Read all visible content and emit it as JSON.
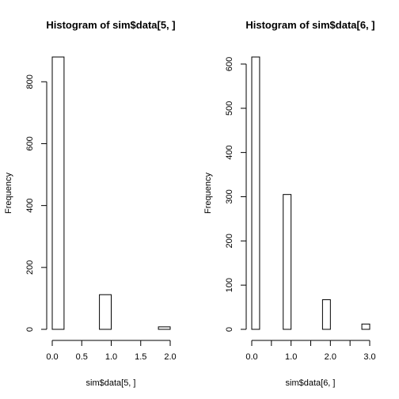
{
  "chart_data": [
    {
      "type": "bar",
      "title": "Histogram of sim$data[5, ]",
      "xlabel": "sim$data[5, ]",
      "ylabel": "Frequency",
      "bins": [
        {
          "from": 0.0,
          "to": 0.2,
          "count": 880
        },
        {
          "from": 0.2,
          "to": 0.4,
          "count": 0
        },
        {
          "from": 0.4,
          "to": 0.6,
          "count": 0
        },
        {
          "from": 0.6,
          "to": 0.8,
          "count": 0
        },
        {
          "from": 0.8,
          "to": 1.0,
          "count": 112
        },
        {
          "from": 1.0,
          "to": 1.2,
          "count": 0
        },
        {
          "from": 1.2,
          "to": 1.4,
          "count": 0
        },
        {
          "from": 1.4,
          "to": 1.6,
          "count": 0
        },
        {
          "from": 1.6,
          "to": 1.8,
          "count": 0
        },
        {
          "from": 1.8,
          "to": 2.0,
          "count": 8
        }
      ],
      "xlim": [
        0,
        2.0
      ],
      "ylim": [
        0,
        880
      ],
      "xticks": [
        0.0,
        0.5,
        1.0,
        1.5,
        2.0
      ],
      "xtick_labels": [
        "0.0",
        "0.5",
        "1.0",
        "1.5",
        "2.0"
      ],
      "yticks": [
        0,
        200,
        400,
        600,
        800
      ],
      "ytick_labels": [
        "0",
        "200",
        "400",
        "600",
        "800"
      ],
      "grid": false
    },
    {
      "type": "bar",
      "title": "Histogram of sim$data[6, ]",
      "xlabel": "sim$data[6, ]",
      "ylabel": "Frequency",
      "bins": [
        {
          "from": 0.0,
          "to": 0.2,
          "count": 616
        },
        {
          "from": 0.2,
          "to": 0.4,
          "count": 0
        },
        {
          "from": 0.4,
          "to": 0.6,
          "count": 0
        },
        {
          "from": 0.6,
          "to": 0.8,
          "count": 0
        },
        {
          "from": 0.8,
          "to": 1.0,
          "count": 305
        },
        {
          "from": 1.0,
          "to": 1.2,
          "count": 0
        },
        {
          "from": 1.2,
          "to": 1.4,
          "count": 0
        },
        {
          "from": 1.4,
          "to": 1.6,
          "count": 0
        },
        {
          "from": 1.6,
          "to": 1.8,
          "count": 0
        },
        {
          "from": 1.8,
          "to": 2.0,
          "count": 67
        },
        {
          "from": 2.0,
          "to": 2.2,
          "count": 0
        },
        {
          "from": 2.2,
          "to": 2.4,
          "count": 0
        },
        {
          "from": 2.4,
          "to": 2.6,
          "count": 0
        },
        {
          "from": 2.6,
          "to": 2.8,
          "count": 0
        },
        {
          "from": 2.8,
          "to": 3.0,
          "count": 12
        }
      ],
      "xlim": [
        0,
        3.0
      ],
      "ylim": [
        0,
        616
      ],
      "xticks": [
        0.0,
        0.5,
        1.0,
        1.5,
        2.0,
        2.5,
        3.0
      ],
      "xtick_labels": [
        "0.0",
        "",
        "1.0",
        "",
        "2.0",
        "",
        "3.0"
      ],
      "yticks": [
        0,
        100,
        200,
        300,
        400,
        500,
        600
      ],
      "ytick_labels": [
        "0",
        "100",
        "200",
        "300",
        "400",
        "500",
        "600"
      ],
      "grid": false
    }
  ]
}
